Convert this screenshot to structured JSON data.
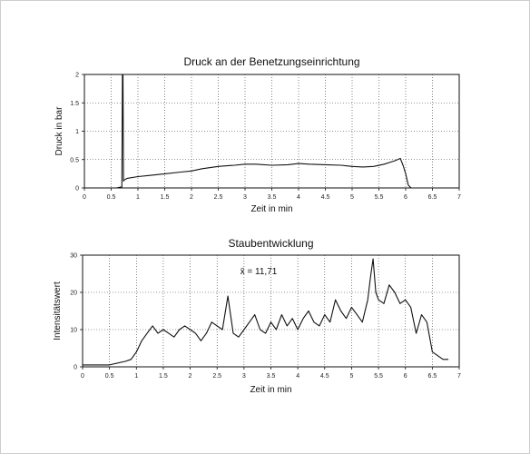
{
  "chart_data": [
    {
      "type": "line",
      "title": "Druck an der Benetzungseinrichtung",
      "xlabel": "Zeit in min",
      "ylabel": "Druck in bar",
      "xlim": [
        0,
        7
      ],
      "ylim": [
        0,
        2
      ],
      "xticks": [
        "0",
        "0.5",
        "1",
        "1.5",
        "2",
        "2.5",
        "3",
        "3.5",
        "4",
        "4.5",
        "5",
        "5.5",
        "6",
        "6.5",
        "7"
      ],
      "yticks": [
        "0",
        "0.5",
        "1",
        "1.5",
        "2"
      ],
      "grid": true,
      "series": [
        {
          "x": [
            0,
            0.6,
            0.7,
            0.71,
            0.72,
            0.73,
            0.74,
            0.8,
            1.0,
            1.2,
            1.5,
            1.8,
            2.0,
            2.2,
            2.5,
            2.8,
            3.0,
            3.2,
            3.5,
            3.8,
            4.0,
            4.2,
            4.5,
            4.8,
            5.0,
            5.2,
            5.4,
            5.6,
            5.7,
            5.8,
            5.85,
            5.9,
            5.95,
            6.0,
            6.05,
            6.1
          ],
          "y": [
            0,
            0,
            0.02,
            2.0,
            2.0,
            0.12,
            0.14,
            0.17,
            0.2,
            0.22,
            0.25,
            0.28,
            0.3,
            0.34,
            0.38,
            0.4,
            0.42,
            0.42,
            0.4,
            0.41,
            0.43,
            0.42,
            0.41,
            0.4,
            0.38,
            0.37,
            0.38,
            0.42,
            0.45,
            0.48,
            0.5,
            0.52,
            0.4,
            0.25,
            0.05,
            0.0
          ]
        }
      ]
    },
    {
      "type": "line",
      "title": "Staubentwicklung",
      "xlabel": "Zeit in min",
      "ylabel": "Intensitätswert",
      "xlim": [
        0,
        7
      ],
      "ylim": [
        0,
        30
      ],
      "xticks": [
        "0",
        "0.5",
        "1",
        "1.5",
        "2",
        "2.5",
        "3",
        "3.5",
        "4",
        "4.5",
        "5",
        "5.5",
        "6",
        "6.5",
        "7"
      ],
      "yticks": [
        "0",
        "10",
        "20",
        "30"
      ],
      "grid": true,
      "annotation": "x̄ = 11,71",
      "series": [
        {
          "x": [
            0,
            0.5,
            0.8,
            0.9,
            1.0,
            1.1,
            1.2,
            1.3,
            1.4,
            1.5,
            1.6,
            1.7,
            1.8,
            1.9,
            2.0,
            2.1,
            2.2,
            2.3,
            2.4,
            2.5,
            2.6,
            2.7,
            2.8,
            2.9,
            3.0,
            3.1,
            3.2,
            3.3,
            3.4,
            3.5,
            3.6,
            3.7,
            3.8,
            3.9,
            4.0,
            4.1,
            4.2,
            4.3,
            4.4,
            4.5,
            4.6,
            4.7,
            4.8,
            4.9,
            5.0,
            5.1,
            5.2,
            5.3,
            5.35,
            5.4,
            5.45,
            5.5,
            5.6,
            5.7,
            5.8,
            5.9,
            6.0,
            6.1,
            6.2,
            6.3,
            6.4,
            6.5,
            6.6,
            6.7,
            6.8
          ],
          "y": [
            0.5,
            0.5,
            1.5,
            2,
            4,
            7,
            9,
            11,
            9,
            10,
            9,
            8,
            10,
            11,
            10,
            9,
            7,
            9,
            12,
            11,
            10,
            19,
            9,
            8,
            10,
            12,
            14,
            10,
            9,
            12,
            10,
            14,
            11,
            13,
            10,
            13,
            15,
            12,
            11,
            14,
            12,
            18,
            15,
            13,
            16,
            14,
            12,
            18,
            24,
            29,
            20,
            18,
            17,
            22,
            20,
            17,
            18,
            16,
            9,
            14,
            12,
            4,
            3,
            2,
            2
          ]
        }
      ]
    }
  ]
}
